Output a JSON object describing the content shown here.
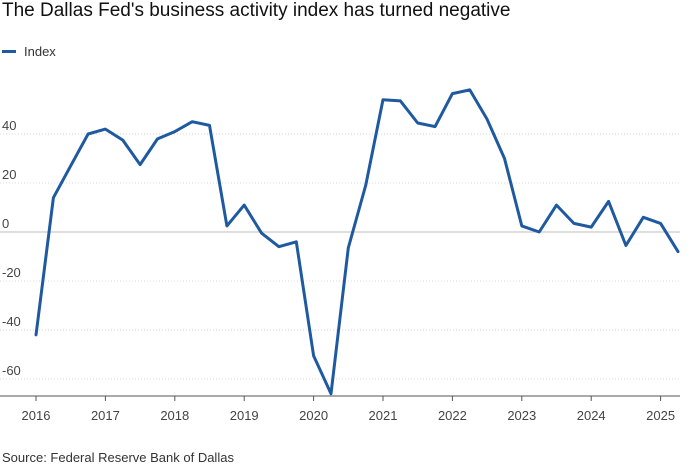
{
  "title": "The Dallas Fed's business activity index has turned negative",
  "source": "Source: Federal Reserve Bank of Dallas",
  "colors": {
    "series": "#1f5aa0",
    "grid": "#d9d9d9",
    "text": "#444444"
  },
  "chart_data": {
    "type": "line",
    "title": "The Dallas Fed's business activity index has turned negative",
    "xlabel": "",
    "ylabel": "",
    "xlim": [
      2016,
      2025.3
    ],
    "ylim": [
      -70,
      60
    ],
    "y_ticks": [
      -60,
      -40,
      -20,
      0,
      20,
      40
    ],
    "x_ticks": [
      2016,
      2017,
      2018,
      2019,
      2020,
      2021,
      2022,
      2023,
      2024,
      2025
    ],
    "x_tick_labels": [
      "2016",
      "2017",
      "2018",
      "2019",
      "2020",
      "2021",
      "2022",
      "2023",
      "2024",
      "2025"
    ],
    "legend": {
      "position": "top-left",
      "entries": [
        "Index"
      ]
    },
    "grid": true,
    "series": [
      {
        "name": "Index",
        "color": "#1f5aa0",
        "points": [
          [
            2016.0,
            -42
          ],
          [
            2016.25,
            14
          ],
          [
            2016.5,
            27
          ],
          [
            2016.75,
            40
          ],
          [
            2017.0,
            42
          ],
          [
            2017.25,
            37.5
          ],
          [
            2017.5,
            27.5
          ],
          [
            2017.75,
            38
          ],
          [
            2018.0,
            41
          ],
          [
            2018.25,
            45
          ],
          [
            2018.5,
            43.5
          ],
          [
            2018.75,
            2.5
          ],
          [
            2019.0,
            11
          ],
          [
            2019.25,
            -0.5
          ],
          [
            2019.5,
            -6
          ],
          [
            2019.75,
            -4
          ],
          [
            2020.0,
            -50.5
          ],
          [
            2020.25,
            -66
          ],
          [
            2020.5,
            -6.5
          ],
          [
            2020.75,
            19
          ],
          [
            2021.0,
            54
          ],
          [
            2021.25,
            53.5
          ],
          [
            2021.5,
            44.5
          ],
          [
            2021.75,
            43
          ],
          [
            2022.0,
            56.5
          ],
          [
            2022.25,
            58
          ],
          [
            2022.5,
            46
          ],
          [
            2022.75,
            30
          ],
          [
            2023.0,
            2.5
          ],
          [
            2023.25,
            0
          ],
          [
            2023.5,
            11
          ],
          [
            2023.75,
            3.5
          ],
          [
            2024.0,
            2
          ],
          [
            2024.25,
            12.5
          ],
          [
            2024.5,
            -5.5
          ],
          [
            2024.75,
            6
          ],
          [
            2025.0,
            3.5
          ],
          [
            2025.25,
            -8
          ]
        ]
      }
    ]
  }
}
